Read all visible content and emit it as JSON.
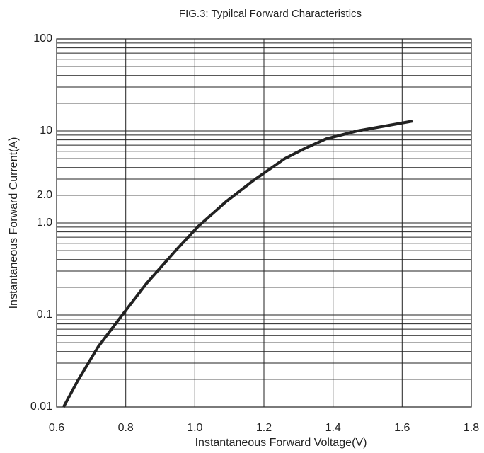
{
  "chart_data": {
    "type": "line",
    "title": "FIG.3: Typilcal Forward Characteristics",
    "xlabel": "Instantaneous Forward Voltage(V)",
    "ylabel": "Instantaneous Forward Current(A)",
    "xlim": [
      0.6,
      1.8
    ],
    "ylim": [
      0.01,
      100
    ],
    "yscale": "log",
    "grid": true,
    "x_ticks": [
      0.6,
      0.8,
      1.0,
      1.2,
      1.4,
      1.6,
      1.8
    ],
    "x_tick_labels": [
      "0.6",
      "0.8",
      "1.0",
      "1.2",
      "1.4",
      "1.6",
      "1.8"
    ],
    "y_ticks": [
      0.01,
      0.1,
      1,
      2,
      10,
      100
    ],
    "y_tick_labels": [
      "0.01",
      "0.1",
      "1.0",
      "2.0",
      "10",
      "100"
    ],
    "series": [
      {
        "color": "#222222",
        "x": [
          0.62,
          0.66,
          0.72,
          0.79,
          0.86,
          0.94,
          1.01,
          1.09,
          1.17,
          1.26,
          1.32,
          1.38,
          1.47,
          1.55,
          1.63
        ],
        "y": [
          0.01,
          0.019,
          0.045,
          0.1,
          0.22,
          0.48,
          0.92,
          1.7,
          2.9,
          5.0,
          6.5,
          8.2,
          10.0,
          11.3,
          12.8
        ]
      }
    ]
  }
}
